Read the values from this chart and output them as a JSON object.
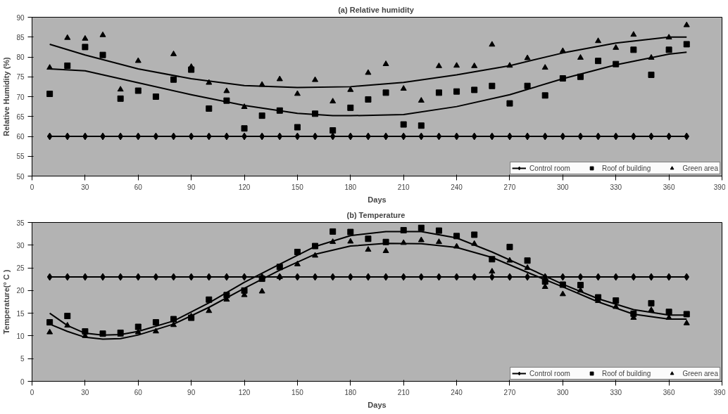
{
  "chart_data": [
    {
      "type": "scatter",
      "title": "(a)  Relative humidity",
      "xlabel": "Days",
      "ylabel": "Relative Humidity (%)",
      "x": [
        10,
        20,
        30,
        40,
        50,
        60,
        70,
        80,
        90,
        100,
        110,
        120,
        130,
        140,
        150,
        160,
        170,
        180,
        190,
        200,
        210,
        220,
        230,
        240,
        250,
        260,
        270,
        280,
        290,
        300,
        310,
        320,
        330,
        340,
        350,
        360,
        370
      ],
      "xlim": [
        0,
        390
      ],
      "xticks": [
        0,
        30,
        60,
        90,
        120,
        150,
        180,
        210,
        240,
        270,
        300,
        330,
        360,
        390
      ],
      "ylim": [
        50,
        90
      ],
      "yticks": [
        50,
        55,
        60,
        65,
        70,
        75,
        80,
        85,
        90
      ],
      "grid": false,
      "legend": "bottom right",
      "series": [
        {
          "name": "Control room",
          "type": "line",
          "marker": "diamond",
          "color": "#000000",
          "values": [
            60,
            60,
            60,
            60,
            60,
            60,
            60,
            60,
            60,
            60,
            60,
            60,
            60,
            60,
            60,
            60,
            60,
            60,
            60,
            60,
            60,
            60,
            60,
            60,
            60,
            60,
            60,
            60,
            60,
            60,
            60,
            60,
            60,
            60,
            60,
            60,
            60
          ]
        },
        {
          "name": "Roof of building",
          "marker": "square",
          "color": "#000000",
          "values": [
            70.7,
            77.8,
            82.5,
            80.5,
            69.5,
            71.5,
            70,
            74.3,
            76.8,
            67,
            69,
            62,
            65.2,
            66.5,
            62.3,
            65.7,
            61.5,
            67.2,
            69.3,
            71,
            63,
            62.7,
            71,
            71.3,
            71.7,
            72.7,
            68.3,
            72.7,
            70.3,
            74.6,
            75,
            79,
            78.2,
            81.8,
            75.5,
            81.8,
            83.2
          ]
        },
        {
          "name": "Green area",
          "marker": "triangle",
          "color": "#000000",
          "values": [
            77.3,
            84.8,
            84.6,
            85.5,
            71.8,
            79,
            null,
            80.7,
            77.5,
            73.5,
            71.4,
            67.4,
            73,
            74.4,
            70.7,
            74.2,
            68.8,
            71.7,
            76,
            78.2,
            72,
            69,
            77.7,
            77.8,
            77.7,
            83.1,
            77.8,
            79.7,
            77.3,
            81.5,
            79.8,
            84,
            82.3,
            85.6,
            79.8,
            84.9,
            88
          ]
        },
        {
          "type": "line",
          "marker": "none",
          "color": "#000000",
          "x": [
            10,
            30,
            60,
            90,
            120,
            150,
            180,
            210,
            240,
            270,
            300,
            330,
            360,
            370
          ],
          "values": [
            83.2,
            80.5,
            77,
            74.5,
            72.8,
            72.3,
            72.5,
            73.6,
            75.5,
            77.8,
            81,
            83.5,
            85,
            85
          ]
        },
        {
          "type": "line",
          "marker": "none",
          "color": "#000000",
          "x": [
            10,
            30,
            60,
            90,
            120,
            150,
            170,
            180,
            210,
            240,
            270,
            300,
            330,
            360,
            370
          ],
          "values": [
            77,
            76.5,
            73.5,
            70.5,
            67.8,
            65.8,
            65.2,
            65.2,
            65.5,
            67.5,
            70.5,
            74.5,
            78,
            80.7,
            81.2
          ]
        }
      ]
    },
    {
      "type": "scatter",
      "title": "(b)  Temperature",
      "xlabel": "Days",
      "ylabel": "Temperature(° C )",
      "x": [
        10,
        20,
        30,
        40,
        50,
        60,
        70,
        80,
        90,
        100,
        110,
        120,
        130,
        140,
        150,
        160,
        170,
        180,
        190,
        200,
        210,
        220,
        230,
        240,
        250,
        260,
        270,
        280,
        290,
        300,
        310,
        320,
        330,
        340,
        350,
        360,
        370
      ],
      "xlim": [
        0,
        390
      ],
      "xticks": [
        0,
        30,
        60,
        90,
        120,
        150,
        180,
        210,
        240,
        270,
        300,
        330,
        360,
        390
      ],
      "ylim": [
        0,
        35
      ],
      "yticks": [
        0,
        5,
        10,
        15,
        20,
        25,
        30,
        35
      ],
      "grid": false,
      "legend": "bottom right",
      "series": [
        {
          "name": "Control room",
          "type": "line",
          "marker": "diamond",
          "color": "#000000",
          "values": [
            23,
            23,
            23,
            23,
            23,
            23,
            23,
            23,
            23,
            23,
            23,
            23,
            23,
            23,
            23,
            23,
            23,
            23,
            23,
            23,
            23,
            23,
            23,
            23,
            23,
            23,
            23,
            23,
            23,
            23,
            23,
            23,
            23,
            23,
            23,
            23,
            23
          ]
        },
        {
          "name": "Roof of building",
          "marker": "square",
          "color": "#000000",
          "values": [
            13,
            14.4,
            11,
            10.5,
            10.7,
            12,
            13,
            13.7,
            14,
            18,
            19,
            20,
            22.6,
            25.2,
            28.5,
            29.8,
            33,
            32.9,
            31.4,
            30.7,
            33.3,
            33.8,
            33.2,
            32,
            32.3,
            26.9,
            29.6,
            26.6,
            22,
            21.3,
            21.2,
            18.5,
            17.8,
            14.9,
            17.2,
            15.3,
            14.8
          ]
        },
        {
          "name": "Green area",
          "marker": "triangle",
          "color": "#000000",
          "values": [
            10.8,
            12.3,
            10,
            null,
            10.3,
            10.8,
            11,
            12.4,
            14.3,
            15.5,
            18,
            19,
            19.8,
            23,
            25.8,
            27.7,
            30.7,
            30.8,
            29,
            28.7,
            30.5,
            31.1,
            30.7,
            29.7,
            30.3,
            24.2,
            26.6,
            25,
            20.8,
            19.2,
            20,
            17.7,
            16.4,
            14,
            15.7,
            14,
            12.8
          ]
        },
        {
          "type": "line",
          "marker": "none",
          "color": "#000000",
          "x": [
            10,
            20,
            30,
            40,
            50,
            60,
            80,
            100,
            120,
            140,
            160,
            180,
            200,
            220,
            240,
            260,
            280,
            300,
            320,
            340,
            360,
            370
          ],
          "values": [
            15,
            12.3,
            10.6,
            10.2,
            10.3,
            11,
            13.3,
            17.3,
            21.8,
            25.8,
            29.7,
            32.1,
            33,
            33,
            31.6,
            28.5,
            25,
            21.4,
            18.2,
            15.8,
            14.6,
            14.6
          ]
        },
        {
          "type": "line",
          "marker": "none",
          "color": "#000000",
          "x": [
            10,
            20,
            30,
            40,
            50,
            60,
            80,
            100,
            120,
            140,
            160,
            180,
            200,
            220,
            240,
            260,
            280,
            300,
            320,
            340,
            360,
            370
          ],
          "values": [
            12.6,
            11,
            9.7,
            9.3,
            9.4,
            10.2,
            12.6,
            16.3,
            20.5,
            24.5,
            28,
            29.8,
            30.4,
            30.3,
            29.5,
            27.3,
            24,
            20.8,
            17.5,
            14.8,
            13.7,
            13.7
          ]
        }
      ]
    }
  ]
}
